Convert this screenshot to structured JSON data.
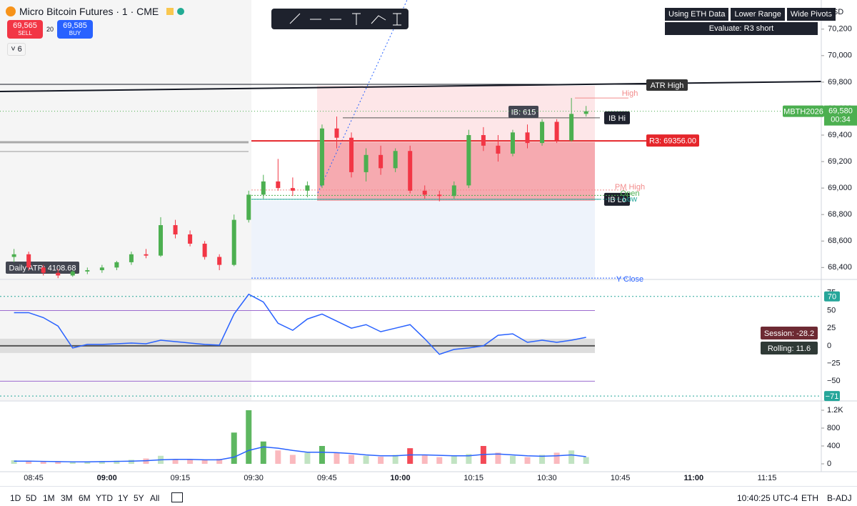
{
  "header": {
    "symbol": "Micro Bitcoin Futures · 1 · CME",
    "sell_price": "69,565",
    "sell_label": "SELL",
    "quantity": "20",
    "buy_price": "69,585",
    "buy_label": "BUY",
    "count": "6"
  },
  "indicator_buttons": [
    "Using ETH Data",
    "Lower Range",
    "Wide Pivots"
  ],
  "evaluate": "Evaluate: R3 short",
  "currency": "USD",
  "chart_data": [
    {
      "type": "candlestick",
      "x": [
        "08:41",
        "08:44",
        "08:47",
        "08:50",
        "08:53",
        "08:56",
        "08:59",
        "09:02",
        "09:05",
        "09:08",
        "09:11",
        "09:14",
        "09:17",
        "09:20",
        "09:23",
        "09:26",
        "09:29",
        "09:32",
        "09:35",
        "09:38",
        "09:41",
        "09:44",
        "09:47",
        "09:50",
        "09:53",
        "09:56",
        "09:59",
        "10:02",
        "10:05",
        "10:08",
        "10:11",
        "10:14",
        "10:17",
        "10:20",
        "10:23",
        "10:26",
        "10:29",
        "10:32",
        "10:35",
        "10:38"
      ],
      "open": [
        68480,
        68500,
        68400,
        68360,
        68340,
        68370,
        68380,
        68400,
        68440,
        68500,
        68490,
        68720,
        68650,
        68580,
        68480,
        68420,
        68760,
        68950,
        69050,
        69000,
        68980,
        69020,
        69450,
        69380,
        69120,
        69250,
        69150,
        69280,
        68980,
        68950,
        68940,
        69020,
        69400,
        69320,
        69260,
        69420,
        69340,
        69500,
        69360,
        69560
      ],
      "high": [
        68540,
        68520,
        68420,
        68390,
        68380,
        68400,
        68420,
        68450,
        68520,
        68540,
        68780,
        68760,
        68680,
        68600,
        68500,
        68800,
        68980,
        69100,
        69220,
        69080,
        69050,
        69480,
        69540,
        69420,
        69300,
        69320,
        69300,
        69320,
        69020,
        68980,
        69050,
        69440,
        69460,
        69400,
        69440,
        69480,
        69520,
        69520,
        69680,
        69620
      ],
      "low": [
        68440,
        68380,
        68340,
        68320,
        68330,
        68350,
        68360,
        68380,
        68420,
        68470,
        68480,
        68620,
        68560,
        68460,
        68380,
        68410,
        68740,
        68920,
        68980,
        68940,
        68930,
        69000,
        69300,
        69080,
        69050,
        69100,
        69120,
        68960,
        68920,
        68900,
        68920,
        69000,
        69280,
        69200,
        69240,
        69300,
        69320,
        69340,
        69350,
        69540
      ],
      "close": [
        68500,
        68400,
        68360,
        68340,
        68370,
        68380,
        68400,
        68440,
        68500,
        68490,
        68720,
        68650,
        68580,
        68480,
        68420,
        68760,
        68950,
        69050,
        69000,
        68980,
        69020,
        69450,
        69380,
        69120,
        69250,
        69150,
        69280,
        68980,
        68950,
        68940,
        69020,
        69400,
        69320,
        69260,
        69420,
        69340,
        69500,
        69360,
        69560,
        69580
      ],
      "up_color": "#4caf50",
      "down_color": "#f23645",
      "ylim": [
        68310,
        70420
      ],
      "yticks": [
        {
          "value": 70200,
          "label": "70,200"
        },
        {
          "value": 70000,
          "label": "70,000"
        },
        {
          "value": 69800,
          "label": "69,800"
        },
        {
          "value": 69600,
          "label": "69,600"
        },
        {
          "value": 69400,
          "label": "69,400"
        },
        {
          "value": 69200,
          "label": "69,200"
        },
        {
          "value": 69000,
          "label": "69,000"
        },
        {
          "value": 68800,
          "label": "68,800"
        },
        {
          "value": 68600,
          "label": "68,600"
        },
        {
          "value": 68400,
          "label": "68,400"
        }
      ],
      "xticks": [
        "08:45",
        "09:00",
        "09:15",
        "09:30",
        "09:45",
        "10:00",
        "10:15",
        "10:30",
        "10:45",
        "11:00",
        "11:15"
      ],
      "r3": {
        "value": 69356,
        "label": "R3: 69356.00"
      },
      "ib_high": {
        "value": 69530,
        "label": "IB Hi"
      },
      "ib_low": {
        "value": 68915,
        "label": "IB Lo"
      },
      "ib_range": "IB: 615",
      "atr_high": "ATR High",
      "daily_atr": "Daily ATR: 4108.68",
      "level_labels": [
        {
          "label": "High",
          "value": 69680,
          "color": "#f28b8b"
        },
        {
          "label": "PM High",
          "value": 68985,
          "color": "#f28b8b"
        },
        {
          "label": "Open",
          "value": 68945,
          "color": "#4caf50"
        },
        {
          "label": "Low",
          "value": 68915,
          "color": "#26a69a"
        },
        {
          "label": "Y Close",
          "value": 68320,
          "color": "#2962ff"
        }
      ],
      "contract": "MBTH2026",
      "last_price": {
        "value": 69580,
        "label": "69,580"
      },
      "countdown": "00:34"
    },
    {
      "type": "line",
      "x": [
        "08:41",
        "08:44",
        "08:47",
        "08:50",
        "08:53",
        "08:56",
        "08:59",
        "09:02",
        "09:05",
        "09:08",
        "09:11",
        "09:14",
        "09:17",
        "09:20",
        "09:23",
        "09:26",
        "09:29",
        "09:32",
        "09:35",
        "09:38",
        "09:41",
        "09:44",
        "09:47",
        "09:50",
        "09:53",
        "09:56",
        "09:59",
        "10:02",
        "10:05",
        "10:08",
        "10:11",
        "10:14",
        "10:17",
        "10:20",
        "10:23",
        "10:26",
        "10:29",
        "10:32",
        "10:35",
        "10:38"
      ],
      "values": [
        47,
        47,
        40,
        28,
        -3,
        2,
        2,
        3,
        4,
        3,
        8,
        6,
        4,
        2,
        1,
        45,
        73,
        62,
        32,
        22,
        38,
        45,
        35,
        25,
        30,
        20,
        25,
        30,
        10,
        -12,
        -5,
        -3,
        0,
        15,
        17,
        5,
        8,
        5,
        8,
        12
      ],
      "color": "#2962ff",
      "ylim": [
        -77,
        93
      ],
      "yticks": [
        75,
        50,
        25,
        0,
        {
          "value": -25,
          "label": "−25"
        },
        {
          "value": -50,
          "label": "−50"
        }
      ],
      "upper_band": {
        "value": 70,
        "label": "70"
      },
      "lower_band": {
        "value": -71,
        "label": "−71"
      },
      "session_label": "Session: -28.2",
      "rolling_label": "Rolling: 11.6"
    },
    {
      "type": "bar",
      "x": [
        "08:41",
        "08:44",
        "08:47",
        "08:50",
        "08:53",
        "08:56",
        "08:59",
        "09:02",
        "09:05",
        "09:08",
        "09:11",
        "09:14",
        "09:17",
        "09:20",
        "09:23",
        "09:26",
        "09:29",
        "09:32",
        "09:35",
        "09:38",
        "09:41",
        "09:44",
        "09:47",
        "09:50",
        "09:53",
        "09:56",
        "09:59",
        "10:02",
        "10:05",
        "10:08",
        "10:11",
        "10:14",
        "10:17",
        "10:20",
        "10:23",
        "10:26",
        "10:29",
        "10:32",
        "10:35",
        "10:38"
      ],
      "values": [
        80,
        60,
        50,
        40,
        40,
        50,
        60,
        70,
        90,
        120,
        180,
        100,
        90,
        80,
        110,
        700,
        1200,
        500,
        300,
        200,
        250,
        400,
        250,
        200,
        180,
        160,
        200,
        350,
        200,
        150,
        180,
        220,
        400,
        250,
        180,
        150,
        200,
        250,
        300,
        150
      ],
      "average": [
        60,
        60,
        55,
        50,
        45,
        45,
        50,
        55,
        60,
        70,
        90,
        100,
        100,
        90,
        90,
        150,
        300,
        380,
        350,
        300,
        260,
        260,
        250,
        230,
        200,
        180,
        180,
        200,
        200,
        190,
        180,
        180,
        210,
        220,
        200,
        180,
        170,
        180,
        200,
        160
      ],
      "ylim": [
        -176,
        1392
      ],
      "yticks": [
        0,
        400,
        800,
        {
          "value": 1200,
          "label": "1.2K"
        }
      ]
    }
  ],
  "bottom_bar": {
    "ranges": [
      "1D",
      "5D",
      "1M",
      "3M",
      "6M",
      "YTD",
      "1Y",
      "5Y",
      "All"
    ],
    "time": "10:40:25 UTC-4",
    "session": "ETH",
    "adjustment": "B-ADJ"
  }
}
